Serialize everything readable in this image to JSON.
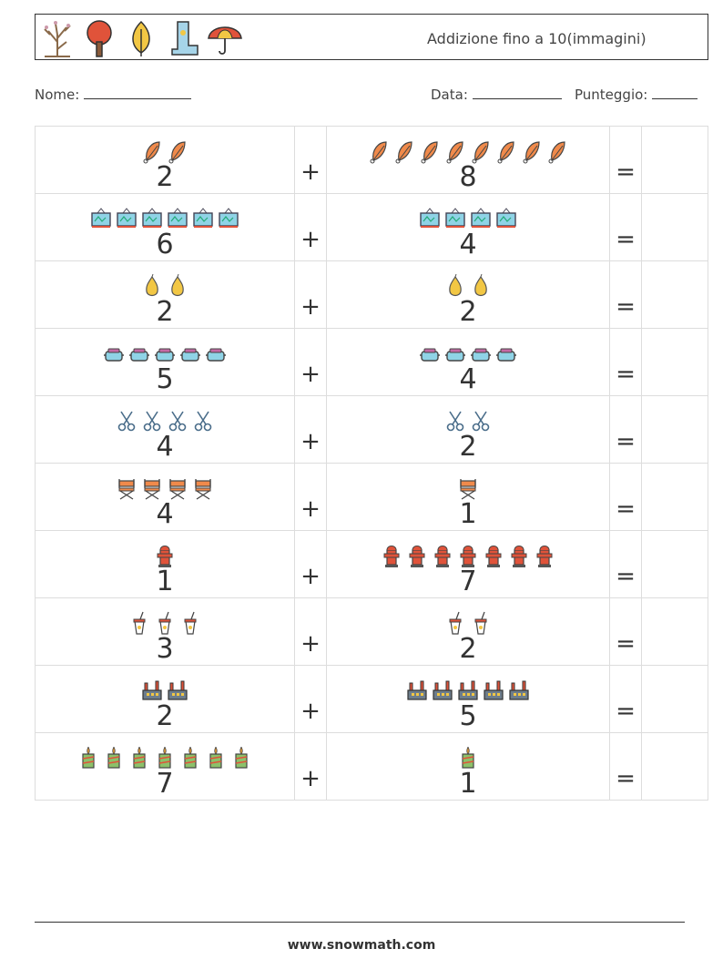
{
  "header": {
    "title": "Addizione fino a 10(immagini)",
    "icons": [
      "bare-tree-icon",
      "red-tree-icon",
      "yellow-leaf-icon",
      "rain-boot-icon",
      "umbrella-icon"
    ]
  },
  "fields": {
    "name_label": "Nome:",
    "date_label": "Data:",
    "score_label": "Punteggio:"
  },
  "operators": {
    "plus": "+",
    "equals": "="
  },
  "rows": [
    {
      "icon": "leaf",
      "a": 2,
      "b": 8
    },
    {
      "icon": "painting",
      "a": 6,
      "b": 4
    },
    {
      "icon": "pear",
      "a": 2,
      "b": 2
    },
    {
      "icon": "vr-goggles",
      "a": 5,
      "b": 4
    },
    {
      "icon": "scissors",
      "a": 4,
      "b": 2
    },
    {
      "icon": "director-chair",
      "a": 4,
      "b": 1
    },
    {
      "icon": "fire-hydrant",
      "a": 1,
      "b": 7
    },
    {
      "icon": "drink-cup",
      "a": 3,
      "b": 2
    },
    {
      "icon": "factory",
      "a": 2,
      "b": 5
    },
    {
      "icon": "candle",
      "a": 7,
      "b": 1
    }
  ],
  "footer": {
    "website": "www.snowmath.com"
  }
}
